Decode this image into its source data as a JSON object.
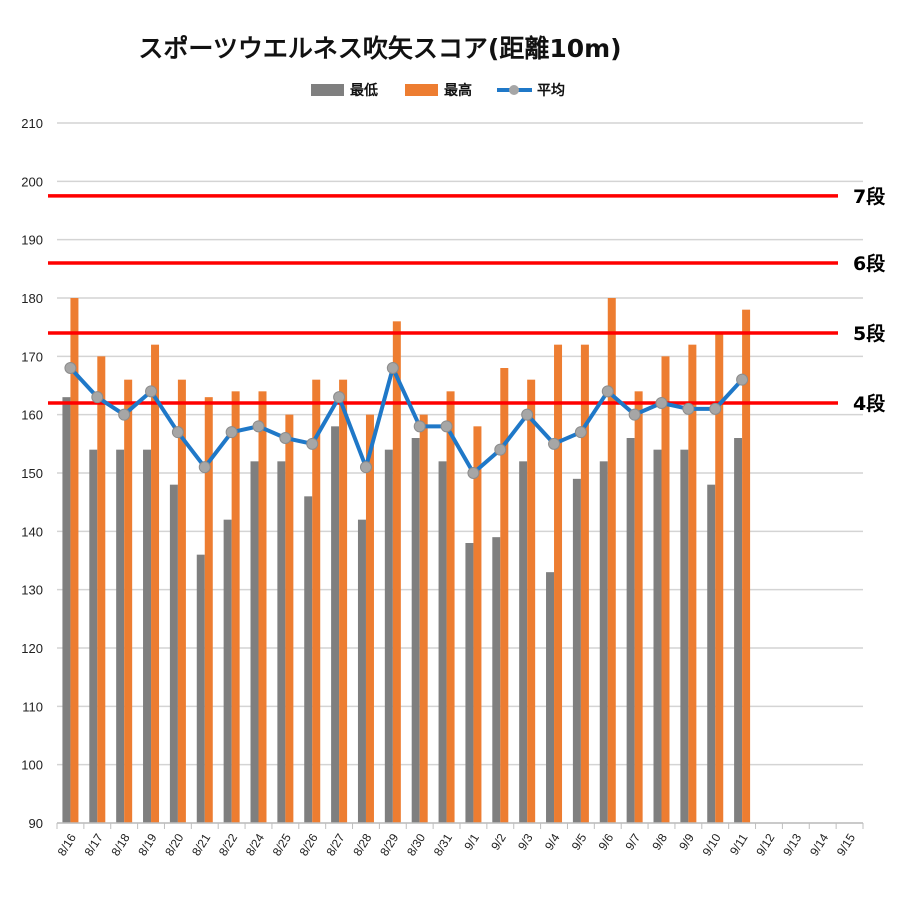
{
  "colors": {
    "min": "#7f7f7f",
    "max": "#ed7d31",
    "avg_line": "#1f78c8",
    "avg_marker": "#a6a6a6",
    "ref_line": "#ff0000",
    "grid": "#d4d4d4"
  },
  "chart_data": {
    "type": "bar",
    "title": "スポーツウエルネス吹矢スコア(距離10m)",
    "legend": [
      {
        "key": "min",
        "label": "最低"
      },
      {
        "key": "max",
        "label": "最高"
      },
      {
        "key": "avg",
        "label": "平均"
      }
    ],
    "legend_position": "top",
    "grid": true,
    "ylim": [
      90,
      210
    ],
    "yticks": [
      90,
      100,
      110,
      120,
      130,
      140,
      150,
      160,
      170,
      180,
      190,
      200,
      210
    ],
    "categories": [
      "8/16",
      "8/17",
      "8/18",
      "8/19",
      "8/20",
      "8/21",
      "8/22",
      "8/24",
      "8/25",
      "8/26",
      "8/27",
      "8/28",
      "8/29",
      "8/30",
      "8/31",
      "9/1",
      "9/2",
      "9/3",
      "9/4",
      "9/5",
      "9/6",
      "9/7",
      "9/8",
      "9/9",
      "9/10",
      "9/11",
      "9/12",
      "9/13",
      "9/14",
      "9/15"
    ],
    "series": [
      {
        "name": "最低",
        "type": "bar",
        "values": [
          163,
          154,
          154,
          154,
          148,
          136,
          142,
          152,
          152,
          146,
          158,
          142,
          154,
          156,
          152,
          138,
          139,
          152,
          133,
          149,
          152,
          156,
          154,
          154,
          148,
          156,
          null,
          null,
          null,
          null
        ]
      },
      {
        "name": "最高",
        "type": "bar",
        "values": [
          180,
          170,
          166,
          172,
          166,
          163,
          164,
          164,
          160,
          166,
          166,
          160,
          176,
          160,
          164,
          158,
          168,
          166,
          172,
          172,
          180,
          164,
          170,
          172,
          174,
          178,
          null,
          null,
          null,
          null
        ]
      },
      {
        "name": "平均",
        "type": "line",
        "values": [
          168,
          163,
          160,
          164,
          157,
          151,
          157,
          158,
          156,
          155,
          163,
          151,
          168,
          158,
          158,
          150,
          154,
          160,
          155,
          157,
          164,
          160,
          162,
          161,
          161,
          166,
          null,
          null,
          null,
          null
        ]
      }
    ],
    "reference_lines": [
      {
        "label": "7段",
        "value": 197.5
      },
      {
        "label": "6段",
        "value": 186
      },
      {
        "label": "5段",
        "value": 174
      },
      {
        "label": "4段",
        "value": 162
      }
    ]
  }
}
